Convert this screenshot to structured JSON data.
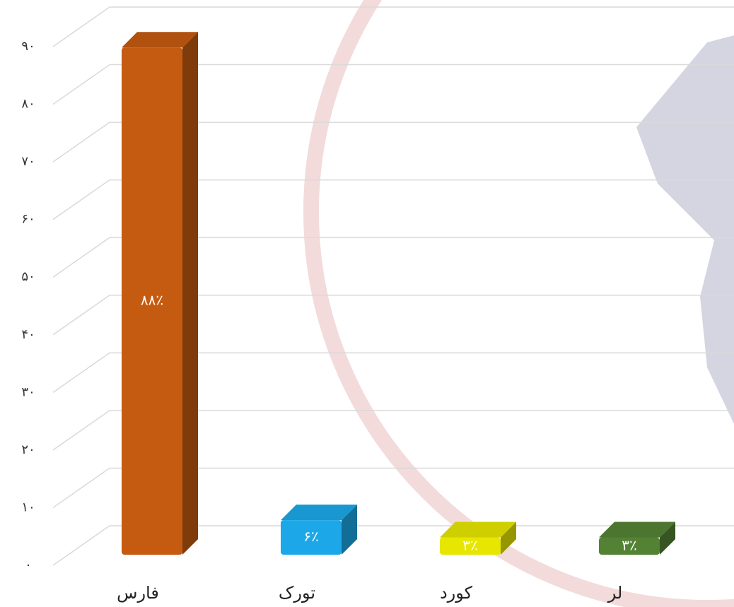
{
  "chart_data": {
    "type": "bar3d",
    "categories": [
      "فارس",
      "تورک",
      "کورد",
      "لر"
    ],
    "values": [
      88,
      6,
      3,
      3
    ],
    "value_labels": [
      "۸۸٪",
      "۶٪",
      "۳٪",
      "۳٪"
    ],
    "colors": [
      "#c55a11",
      "#1ca8e8",
      "#e6e600",
      "#548235"
    ],
    "ylim": [
      0,
      90
    ],
    "yticks": [
      {
        "value": 0,
        "label": "۰"
      },
      {
        "value": 10,
        "label": "۱۰"
      },
      {
        "value": 20,
        "label": "۲۰"
      },
      {
        "value": 30,
        "label": "۳۰"
      },
      {
        "value": 40,
        "label": "۴۰"
      },
      {
        "value": 50,
        "label": "۵۰"
      },
      {
        "value": 60,
        "label": "۶۰"
      },
      {
        "value": 70,
        "label": "۷۰"
      },
      {
        "value": 80,
        "label": "۸۰"
      },
      {
        "value": 90,
        "label": "۹۰"
      }
    ],
    "grid": true
  }
}
